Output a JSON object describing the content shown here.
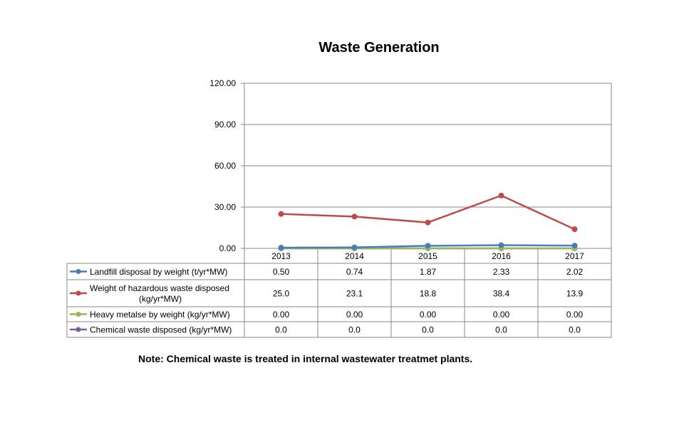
{
  "chart_data": {
    "type": "line",
    "title": "Waste Generation",
    "categories": [
      "2013",
      "2014",
      "2015",
      "2016",
      "2017"
    ],
    "yticks": [
      "0.00",
      "30.00",
      "60.00",
      "90.00",
      "120.00"
    ],
    "ylim": [
      0,
      120
    ],
    "xlabel": "",
    "ylabel": "",
    "grid": true,
    "legend": "data-table",
    "series": [
      {
        "name": "Landfill disposal by weight (t/yr*MW)",
        "name_lines": [
          "Landfill disposal by weight (t/yr*MW)"
        ],
        "color": "#4a7ebb",
        "values": [
          0.5,
          0.74,
          1.87,
          2.33,
          2.02
        ],
        "labels": [
          "0.50",
          "0.74",
          "1.87",
          "2.33",
          "2.02"
        ]
      },
      {
        "name": "Weight of hazardous waste disposed (kg/yr*MW)",
        "name_lines": [
          "Weight of hazardous waste disposed",
          "(kg/yr*MW)"
        ],
        "color": "#be4b48",
        "values": [
          25.0,
          23.1,
          18.8,
          38.4,
          13.9
        ],
        "labels": [
          "25.0",
          "23.1",
          "18.8",
          "38.4",
          "13.9"
        ]
      },
      {
        "name": "Heavy metalse by weight (kg/yr*MW)",
        "name_lines": [
          "Heavy metalse by weight (kg/yr*MW)"
        ],
        "color": "#98b954",
        "values": [
          0.0,
          0.0,
          0.0,
          0.0,
          0.0
        ],
        "labels": [
          "0.00",
          "0.00",
          "0.00",
          "0.00",
          "0.00"
        ]
      },
      {
        "name": "Chemical waste disposed (kg/yr*MW)",
        "name_lines": [
          "Chemical waste disposed (kg/yr*MW)"
        ],
        "color": "#7d5fa0",
        "values": [
          0.0,
          0.0,
          0.0,
          0.0,
          0.0
        ],
        "labels": [
          "0.0",
          "0.0",
          "0.0",
          "0.0",
          "0.0"
        ]
      }
    ]
  },
  "note": "Note: Chemical waste is treated in internal wastewater treatmet  plants."
}
